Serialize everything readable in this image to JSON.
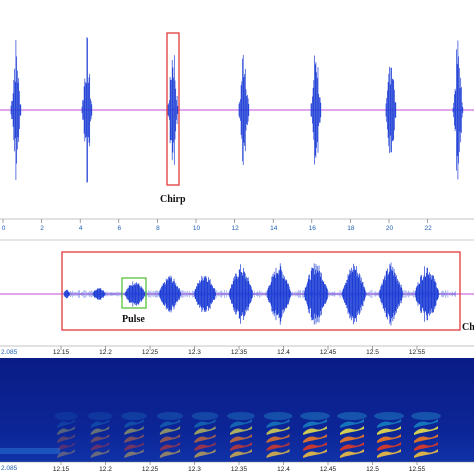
{
  "panels": {
    "waveform_top": {
      "axis_ticks": [
        "0",
        "2",
        "4",
        "6",
        "8",
        "10",
        "12",
        "14",
        "16",
        "18",
        "20",
        "22"
      ],
      "annotation": "Chirp"
    },
    "waveform_zoom": {
      "annotation_pulse": "Pulse",
      "annotation_cut": "Ch"
    },
    "spectrogram": {
      "start_label": "2.085",
      "axis_ticks": [
        "12.15",
        "12.2",
        "12.25",
        "12.3",
        "12.35",
        "12.4",
        "12.45",
        "12.5",
        "12.55"
      ],
      "bottom_start_label": "2.085",
      "bottom_axis_ticks": [
        "12.15",
        "12.2",
        "12.25",
        "12.3",
        "12.35",
        "12.4",
        "12.45",
        "12.5",
        "12.55"
      ]
    }
  },
  "colors": {
    "waveform": "#1f3fd6",
    "baseline": "#c44dd8",
    "highlight_red": "#e03a3a",
    "highlight_green": "#58c23a",
    "spectrogram_bg": "#0b1f8f"
  }
}
